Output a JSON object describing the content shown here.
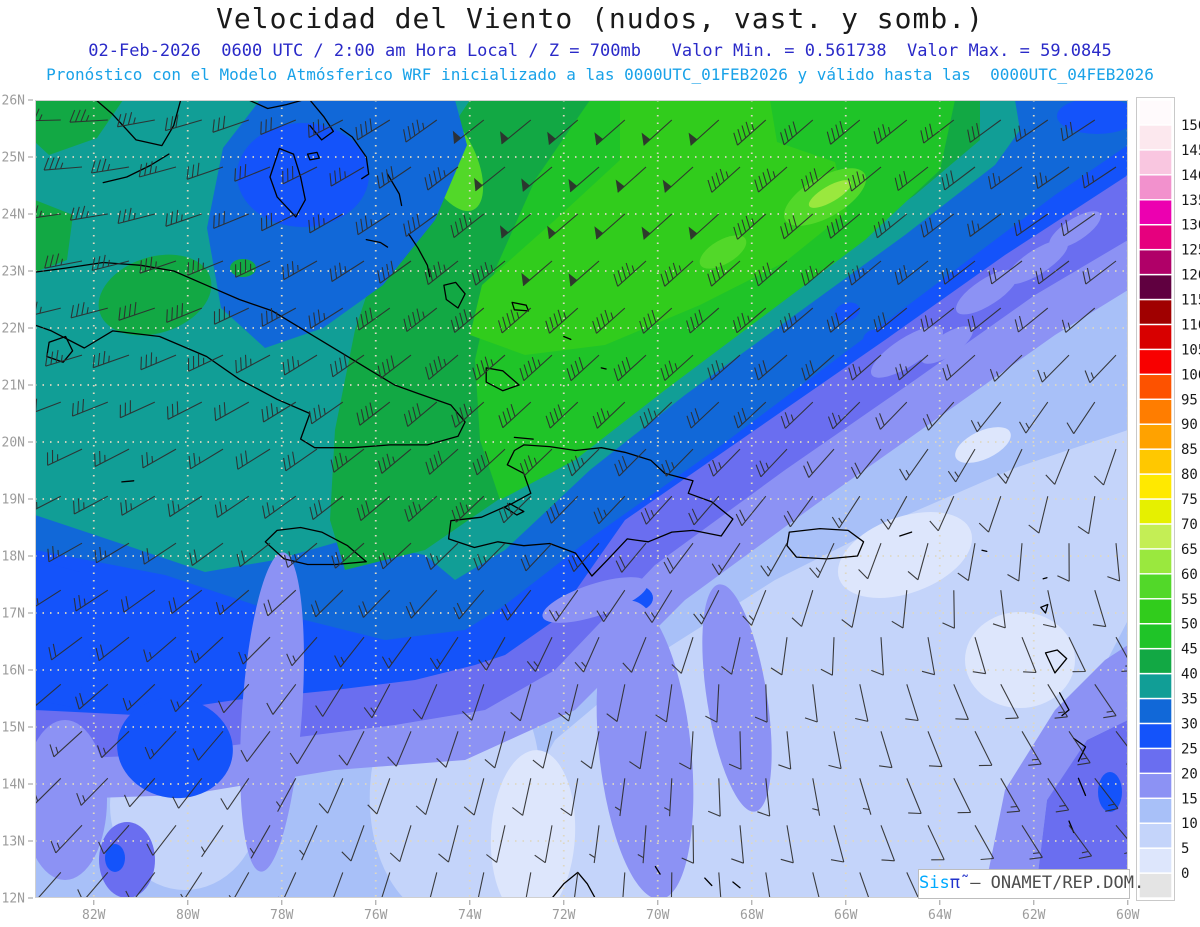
{
  "title": "Velocidad del Viento (nudos, vast. y somb.)",
  "header": {
    "forecast_line": "02-Feb-2026  0600 UTC / 2:00 am Hora Local / Z = 700mb   Valor Min. = 0.561738  Valor Max. = 59.0845",
    "model_line": "Pronóstico con el Modelo Atmósferico WRF inicializado a las 0000UTC_01FEB2026 y válido hasta las  0000UTC_04FEB2026"
  },
  "axes": {
    "lat_labels": [
      "26N",
      "25N",
      "24N",
      "23N",
      "22N",
      "21N",
      "20N",
      "19N",
      "18N",
      "17N",
      "16N",
      "15N",
      "14N",
      "13N",
      "12N"
    ],
    "lon_labels": [
      "82W",
      "80W",
      "78W",
      "76W",
      "74W",
      "72W",
      "70W",
      "68W",
      "66W",
      "64W",
      "62W",
      "60W"
    ]
  },
  "colorbar": {
    "levels": [
      0,
      5,
      10,
      15,
      20,
      25,
      30,
      35,
      40,
      45,
      50,
      55,
      60,
      65,
      70,
      75,
      80,
      85,
      90,
      95,
      100,
      105,
      110,
      115,
      120,
      125,
      130,
      135,
      140,
      145,
      150
    ],
    "colors_low_to_high": [
      "#e4e4e4",
      "#dde6fc",
      "#c4d4fa",
      "#a8c0f8",
      "#8c92f4",
      "#6a6ef0",
      "#1453fa",
      "#1168d8",
      "#119e96",
      "#12a844",
      "#1fc428",
      "#31cc1c",
      "#52d829",
      "#9ae83e",
      "#c4ee55",
      "#e6f000",
      "#ffe900",
      "#ffc800",
      "#ffa200",
      "#ff7d00",
      "#fd5200",
      "#f80000",
      "#d80000",
      "#a00000",
      "#600040",
      "#b00068",
      "#e6007e",
      "#ec00b0",
      "#f291cd",
      "#f9c6e0",
      "#fce8ee",
      "#fffafc"
    ]
  },
  "attribution": {
    "brand": "Sis",
    "symbol": "π̃",
    "text": " – ONAMET/REP.DOM."
  },
  "colors": {
    "title": "#1a1a1a",
    "subtitle_blue": "#2a2ac8",
    "subtitle_cyan": "#19a2e8",
    "axis_label": "#9c9c9c",
    "axis_tick": "#aaaaaa",
    "gridline": "#ded8c2",
    "coastline": "#000000",
    "barb": "#2e2e2e",
    "colorbar_label": "#1a1a1a",
    "colorbar_frame": "#c9c9c9"
  },
  "chart_data": {
    "type": "heatmap",
    "title": "Velocidad del Viento (nudos, vast. y somb.)",
    "units": "nudos (kt)",
    "pressure_level": "700mb",
    "valid_time": "02-Feb-2026 0600 UTC / 2:00 am Hora Local",
    "initialized": "0000UTC_01FEB2026",
    "valid_until": "0000UTC_04FEB2026",
    "value_min": 0.561738,
    "value_max": 59.0845,
    "lon_range": [
      -83.25,
      -60.0
    ],
    "lat_range": [
      12,
      26
    ],
    "shading_interval_kt": 5,
    "legend_position": "right",
    "grid_on": true,
    "wind_grid": {
      "lons": [
        -82,
        -80,
        -78,
        -76,
        -74,
        -72,
        -70,
        -68,
        -66,
        -64,
        -62,
        -60
      ],
      "lats": [
        26,
        24,
        22,
        20,
        18,
        16,
        14,
        12
      ],
      "speed_kt": [
        [
          35,
          32,
          30,
          38,
          48,
          52,
          52,
          46,
          40,
          32,
          28,
          30
        ],
        [
          36,
          35,
          30,
          36,
          45,
          50,
          52,
          46,
          40,
          30,
          22,
          20
        ],
        [
          36,
          40,
          35,
          40,
          48,
          46,
          40,
          35,
          30,
          25,
          18,
          15
        ],
        [
          26,
          26,
          30,
          36,
          42,
          36,
          30,
          25,
          20,
          15,
          13,
          10
        ],
        [
          25,
          20,
          20,
          25,
          25,
          20,
          18,
          15,
          13,
          10,
          10,
          10
        ],
        [
          20,
          15,
          10,
          14,
          10,
          14,
          10,
          10,
          9,
          10,
          13,
          15
        ],
        [
          14,
          10,
          6,
          9,
          10,
          8,
          6,
          9,
          6,
          10,
          14,
          18
        ],
        [
          10,
          6,
          5,
          9,
          10,
          6,
          9,
          10,
          10,
          11,
          15,
          19
        ]
      ],
      "dir_from_deg": [
        [
          270,
          255,
          250,
          240,
          232,
          230,
          228,
          228,
          230,
          232,
          235,
          238
        ],
        [
          262,
          252,
          245,
          238,
          232,
          230,
          228,
          228,
          230,
          232,
          235,
          235
        ],
        [
          255,
          248,
          242,
          235,
          230,
          228,
          228,
          230,
          230,
          232,
          230,
          228
        ],
        [
          245,
          240,
          238,
          232,
          228,
          226,
          225,
          225,
          222,
          215,
          205,
          200
        ],
        [
          240,
          235,
          230,
          228,
          225,
          222,
          218,
          210,
          200,
          190,
          180,
          170
        ],
        [
          230,
          225,
          220,
          210,
          200,
          195,
          190,
          180,
          170,
          160,
          150,
          145
        ],
        [
          225,
          218,
          210,
          200,
          195,
          190,
          185,
          175,
          165,
          155,
          148,
          140
        ],
        [
          220,
          212,
          205,
          198,
          192,
          188,
          182,
          172,
          162,
          152,
          145,
          138
        ]
      ]
    }
  }
}
